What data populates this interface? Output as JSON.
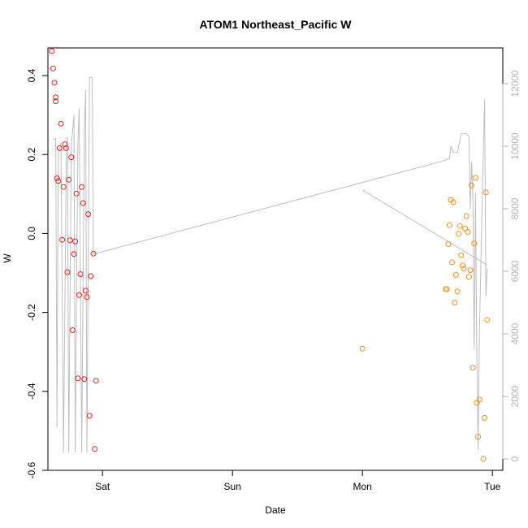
{
  "chart_data": {
    "type": "scatter",
    "title": "ATOM1 Northeast_Pacific W",
    "xlabel": "Date",
    "ylabel": "W",
    "x_ticks": [
      "Sat",
      "Sun",
      "Mon",
      "Tue"
    ],
    "x_tick_values": [
      3.0,
      4.0,
      5.0,
      6.0
    ],
    "xlim": [
      2.58,
      6.08
    ],
    "ylim": [
      -0.6,
      0.47
    ],
    "y_ticks": [
      -0.6,
      -0.4,
      -0.2,
      0.0,
      0.2,
      0.4
    ],
    "y_tick_labels": [
      "-0.6",
      "-0.4",
      "-0.2",
      "0.0",
      "0.2",
      "0.4"
    ],
    "y2lim": [
      0,
      12000
    ],
    "y2_ticks": [
      0,
      2000,
      4000,
      6000,
      8000,
      10000,
      12000
    ],
    "y2_tick_labels": [
      "0",
      "2000",
      "4000",
      "6000",
      "8000",
      "10000",
      "12000"
    ],
    "grid": false,
    "colors": {
      "series_red": "#e8201e",
      "series_orange": "#f0921e",
      "depth_line": "#bebebe",
      "right_axis": "#b4b4b4"
    },
    "series": [
      {
        "color": "#e8201e",
        "points": [
          [
            2.61,
            0.462
          ],
          [
            2.62,
            0.418
          ],
          [
            2.63,
            0.382
          ],
          [
            2.64,
            0.345
          ],
          [
            2.64,
            0.335
          ],
          [
            2.65,
            0.14
          ],
          [
            2.66,
            0.133
          ],
          [
            2.67,
            0.216
          ],
          [
            2.68,
            0.278
          ],
          [
            2.69,
            -0.016
          ],
          [
            2.7,
            0.118
          ],
          [
            2.71,
            0.226
          ],
          [
            2.72,
            0.216
          ],
          [
            2.73,
            -0.098
          ],
          [
            2.74,
            0.136
          ],
          [
            2.75,
            -0.017
          ],
          [
            2.76,
            0.193
          ],
          [
            2.77,
            -0.245
          ],
          [
            2.78,
            -0.052
          ],
          [
            2.79,
            -0.02
          ],
          [
            2.8,
            0.101
          ],
          [
            2.81,
            -0.367
          ],
          [
            2.82,
            -0.156
          ],
          [
            2.83,
            -0.103
          ],
          [
            2.84,
            0.118
          ],
          [
            2.85,
            0.077
          ],
          [
            2.86,
            -0.369
          ],
          [
            2.87,
            -0.145
          ],
          [
            2.88,
            -0.161
          ],
          [
            2.89,
            0.049
          ],
          [
            2.9,
            -0.462
          ],
          [
            2.91,
            -0.108
          ],
          [
            2.93,
            -0.051
          ],
          [
            2.94,
            -0.546
          ],
          [
            2.95,
            -0.373
          ]
        ]
      },
      {
        "color": "#f0921e",
        "points": [
          [
            5.0,
            -0.292
          ],
          [
            5.64,
            -0.141
          ],
          [
            5.65,
            -0.141
          ],
          [
            5.66,
            -0.027
          ],
          [
            5.67,
            0.021
          ],
          [
            5.68,
            0.085
          ],
          [
            5.69,
            -0.073
          ],
          [
            5.7,
            0.079
          ],
          [
            5.71,
            -0.175
          ],
          [
            5.72,
            -0.105
          ],
          [
            5.73,
            -0.147
          ],
          [
            5.74,
            -0.001
          ],
          [
            5.75,
            0.019
          ],
          [
            5.76,
            -0.055
          ],
          [
            5.77,
            -0.081
          ],
          [
            5.78,
            -0.089
          ],
          [
            5.79,
            0.013
          ],
          [
            5.8,
            0.044
          ],
          [
            5.81,
            0.004
          ],
          [
            5.82,
            -0.11
          ],
          [
            5.83,
            -0.093
          ],
          [
            5.84,
            0.122
          ],
          [
            5.85,
            -0.34
          ],
          [
            5.86,
            -0.025
          ],
          [
            5.87,
            0.141
          ],
          [
            5.88,
            -0.429
          ],
          [
            5.89,
            -0.515
          ],
          [
            5.9,
            -0.421
          ],
          [
            5.93,
            -0.571
          ],
          [
            5.94,
            -0.467
          ],
          [
            5.95,
            0.104
          ],
          [
            5.96,
            -0.219
          ]
        ]
      }
    ],
    "depth_line_segments": [
      [
        [
          2.62,
          10200
        ],
        [
          2.64,
          10250
        ],
        [
          2.65,
          1000
        ],
        [
          2.66,
          9800
        ],
        [
          2.68,
          10100
        ],
        [
          2.7,
          200
        ],
        [
          2.72,
          9200
        ],
        [
          2.73,
          10300
        ],
        [
          2.74,
          200
        ],
        [
          2.76,
          10000
        ],
        [
          2.78,
          11000
        ],
        [
          2.79,
          200
        ],
        [
          2.81,
          10000
        ],
        [
          2.82,
          11200
        ],
        [
          2.84,
          200
        ],
        [
          2.86,
          10500
        ],
        [
          2.87,
          11800
        ],
        [
          2.88,
          200
        ],
        [
          2.9,
          12200
        ],
        [
          2.92,
          12200
        ],
        [
          2.93,
          6550
        ],
        [
          5.64,
          9550
        ],
        [
          5.66,
          9600
        ],
        [
          5.67,
          9600
        ],
        [
          5.68,
          10000
        ],
        [
          5.7,
          9800
        ],
        [
          5.73,
          9800
        ],
        [
          5.76,
          10400
        ],
        [
          5.8,
          10400
        ],
        [
          5.82,
          10300
        ],
        [
          5.83,
          8000
        ],
        [
          5.84,
          9500
        ],
        [
          5.85,
          8300
        ],
        [
          5.86,
          3500
        ],
        [
          5.87,
          8500
        ],
        [
          5.88,
          3300
        ],
        [
          5.89,
          300
        ],
        [
          5.9,
          4000
        ],
        [
          5.92,
          8000
        ],
        [
          5.94,
          11500
        ],
        [
          5.95,
          5200
        ],
        [
          5.96,
          6100
        ]
      ],
      [
        [
          5.0,
          8600
        ],
        [
          5.96,
          6200
        ]
      ]
    ]
  }
}
